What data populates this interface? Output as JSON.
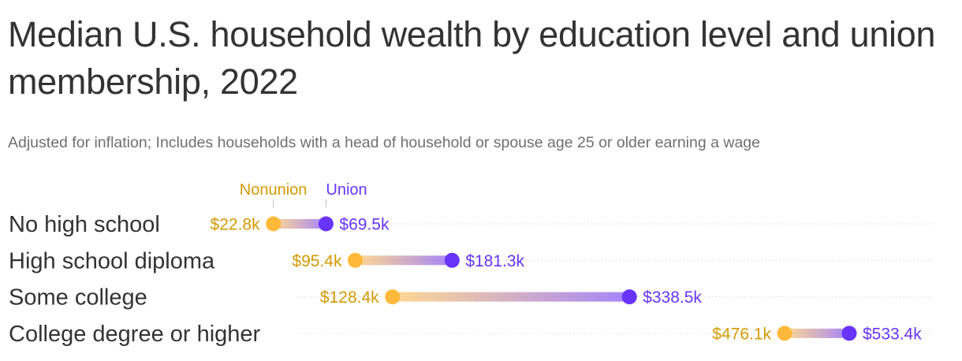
{
  "title": "Median U.S. household wealth by education level and union membership, 2022",
  "subtitle": "Adjusted for inflation; Includes households with a head of household or spouse age 25 or older earning a wage",
  "colors": {
    "nonunion": "#ffb93a",
    "union": "#6934fa",
    "nonunion_text": "#d39a06",
    "union_text": "#6934fa",
    "grid": "#d6d6d6"
  },
  "chart_data": {
    "type": "dumbbell",
    "legend": {
      "nonunion": "Nonunion",
      "union": "Union"
    },
    "xlim": [
      0,
      533.4
    ],
    "categories": [
      "No high school",
      "High school diploma",
      "Some college",
      "College degree or higher"
    ],
    "series": [
      {
        "name": "Nonunion",
        "values": [
          22.8,
          95.4,
          128.4,
          476.1
        ],
        "labels": [
          "$22.8k",
          "$95.4k",
          "$128.4k",
          "$476.1k"
        ]
      },
      {
        "name": "Union",
        "values": [
          69.5,
          181.3,
          338.5,
          533.4
        ],
        "labels": [
          "$69.5k",
          "$181.3k",
          "$338.5k",
          "$533.4k"
        ]
      }
    ]
  }
}
